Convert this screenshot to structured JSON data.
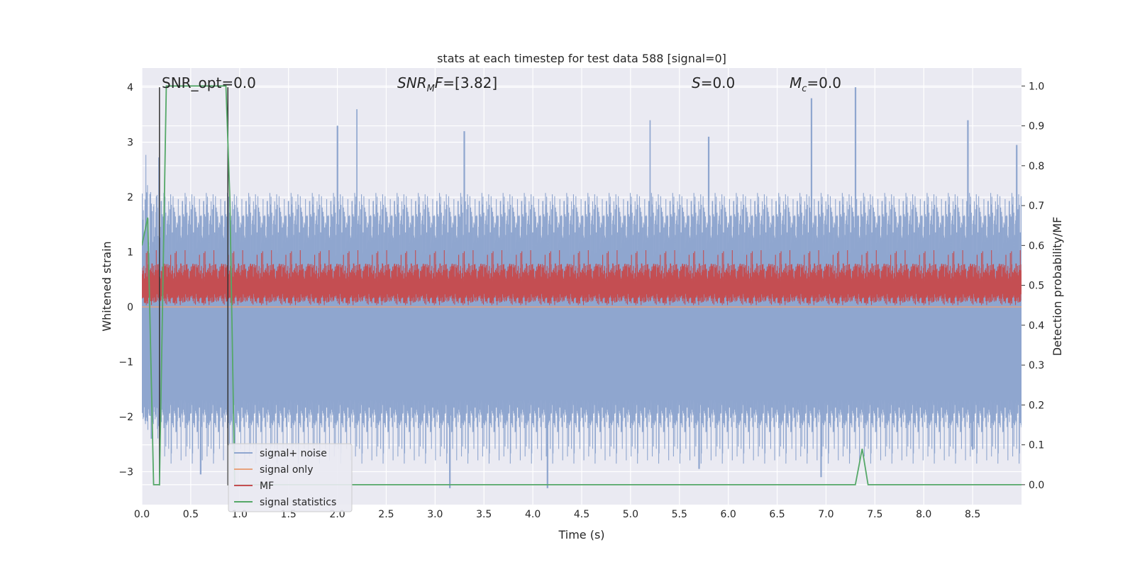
{
  "chart_data": {
    "type": "line",
    "title": "stats at each timestep for test data 588 [signal=0]",
    "xlabel": "Time (s)",
    "ylabel": "Whitened strain",
    "ylabel_right": "Detection probability/MF",
    "xlim": [
      0,
      9
    ],
    "ylim": [
      -3.6,
      4.35
    ],
    "ylim_right": [
      -0.05,
      1.045
    ],
    "xticks": [
      0.0,
      0.5,
      1.0,
      1.5,
      2.0,
      2.5,
      3.0,
      3.5,
      4.0,
      4.5,
      5.0,
      5.5,
      6.0,
      6.5,
      7.0,
      7.5,
      8.0,
      8.5
    ],
    "xtick_labels": [
      "0.0",
      "0.5",
      "1.0",
      "1.5",
      "2.0",
      "2.5",
      "3.0",
      "3.5",
      "4.0",
      "4.5",
      "5.0",
      "5.5",
      "6.0",
      "6.5",
      "7.0",
      "7.5",
      "8.0",
      "8.5"
    ],
    "yticks": [
      4,
      3,
      2,
      1,
      0,
      -1,
      -2,
      -3
    ],
    "ytick_labels": [
      "4",
      "3",
      "2",
      "1",
      "0",
      "−1",
      "−2",
      "−3"
    ],
    "yticks_right": [
      1.0,
      0.9,
      0.8,
      0.7,
      0.6,
      0.5,
      0.4,
      0.3,
      0.2,
      0.1,
      0.0
    ],
    "ytick_labels_right": [
      "1.0",
      "0.9",
      "0.8",
      "0.7",
      "0.6",
      "0.5",
      "0.4",
      "0.3",
      "0.2",
      "0.1",
      "0.0"
    ],
    "grid": true,
    "legend_position": "bottom-left",
    "annotations": [
      {
        "name": "snr-opt",
        "text": "SNR_opt=0.0",
        "x": 0.2,
        "y": 4.1
      },
      {
        "name": "snr-mf",
        "text": "SNR_MF=[3.82]",
        "x": 2.6,
        "y": 4.1
      },
      {
        "name": "s-value",
        "text": "S=0.0",
        "x": 5.6,
        "y": 4.1
      },
      {
        "name": "mc-value",
        "text": "M_c=0.0",
        "x": 6.6,
        "y": 4.1
      }
    ],
    "vlines": [
      {
        "x": 0.18,
        "ymin": -3.25,
        "ymax": 4.0,
        "color": "#333333"
      },
      {
        "x": 0.88,
        "ymin": -3.25,
        "ymax": 4.0,
        "color": "#333333"
      }
    ],
    "series": [
      {
        "name": "signal+ noise",
        "color": "#8fa6cf",
        "axis": "left",
        "kind": "noise",
        "amplitude_range": [
          -2.0,
          2.1
        ],
        "peaks": [
          [
            2.0,
            3.3
          ],
          [
            2.2,
            3.6
          ],
          [
            3.3,
            3.2
          ],
          [
            5.2,
            3.4
          ],
          [
            5.8,
            3.1
          ],
          [
            6.85,
            3.8
          ],
          [
            7.3,
            4.0
          ],
          [
            8.45,
            3.4
          ],
          [
            8.95,
            2.95
          ]
        ],
        "troughs": [
          [
            0.1,
            -2.4
          ],
          [
            0.6,
            -3.05
          ],
          [
            3.15,
            -3.3
          ],
          [
            4.15,
            -3.3
          ],
          [
            5.7,
            -2.95
          ],
          [
            6.95,
            -3.1
          ],
          [
            8.5,
            -2.6
          ]
        ]
      },
      {
        "name": "signal only",
        "color": "#e8a27c",
        "axis": "left",
        "kind": "constant",
        "value": 0.0
      },
      {
        "name": "MF",
        "color": "#c44e52",
        "axis": "right",
        "kind": "noise",
        "amplitude_range": [
          0.45,
          0.555
        ],
        "center": 0.5
      },
      {
        "name": "signal statistics",
        "color": "#55a868",
        "axis": "right",
        "kind": "line",
        "x": [
          0.0,
          0.06,
          0.12,
          0.18,
          0.25,
          0.86,
          0.9,
          0.95,
          1.0,
          7.3,
          7.37,
          7.43,
          9.0
        ],
        "y": [
          0.6,
          0.67,
          0.0,
          0.0,
          1.0,
          1.0,
          0.72,
          0.0,
          0.0,
          0.0,
          0.09,
          0.0,
          0.0
        ]
      }
    ]
  }
}
